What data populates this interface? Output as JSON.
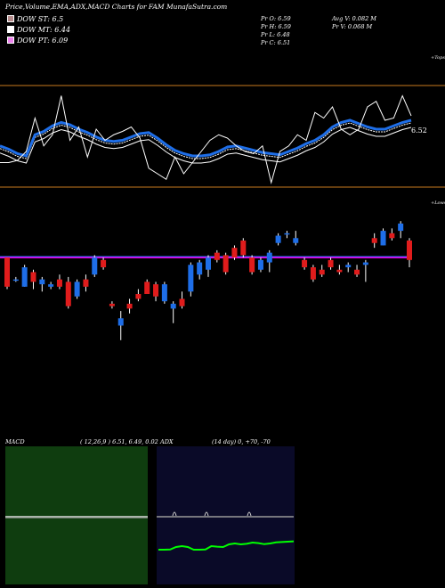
{
  "header": {
    "title": "Price,Volume,EMA,ADX,MACD Charts for FAM MunafaSutra.com",
    "dow_st": "DOW ST: 6.5",
    "dow_mt": "DOW MT: 6.44",
    "dow_pt": "DOW PT: 6.09",
    "pr_o": "Pr O: 6.59",
    "pr_h": "Pr H: 6.59",
    "pr_l": "Pr L: 6.48",
    "pr_c": "Pr C: 6.51",
    "avg_v": "Avg V: 0.082 M",
    "pr_v": "Pr V: 0.068 M"
  },
  "colors": {
    "st": "#b48a8a",
    "mt": "#ffffff",
    "pt": "#ee82ee",
    "bull": "#1e6ee8",
    "bear": "#e01c1c",
    "ema": "#ff00ff",
    "accent": "#c87a1e",
    "macd_bg": "#0f3d0f",
    "adx_bg": "#0a0a28",
    "adx_line": "#00ff00"
  },
  "chart_data": [
    {
      "type": "line",
      "label_right": "6.52",
      "label_top": "+Tops",
      "label_bottom": "+Lows",
      "series": [
        {
          "values": [
            0.45,
            0.42,
            0.38,
            0.36,
            0.55,
            0.58,
            0.63,
            0.66,
            0.64,
            0.6,
            0.57,
            0.53,
            0.5,
            0.49,
            0.5,
            0.53,
            0.56,
            0.57,
            0.52,
            0.46,
            0.41,
            0.38,
            0.36,
            0.36,
            0.37,
            0.4,
            0.44,
            0.45,
            0.43,
            0.41,
            0.39,
            0.38,
            0.37,
            0.4,
            0.43,
            0.47,
            0.5,
            0.55,
            0.62,
            0.66,
            0.68,
            0.65,
            0.62,
            0.6,
            0.6,
            0.63,
            0.66,
            0.68
          ]
        },
        {
          "values": [
            0.3,
            0.3,
            0.32,
            0.4,
            0.7,
            0.45,
            0.55,
            0.9,
            0.5,
            0.62,
            0.35,
            0.6,
            0.5,
            0.55,
            0.58,
            0.62,
            0.52,
            0.25,
            0.2,
            0.15,
            0.35,
            0.2,
            0.3,
            0.4,
            0.5,
            0.55,
            0.52,
            0.45,
            0.4,
            0.38,
            0.45,
            0.12,
            0.4,
            0.45,
            0.55,
            0.5,
            0.75,
            0.7,
            0.8,
            0.6,
            0.55,
            0.6,
            0.8,
            0.85,
            0.68,
            0.7,
            0.9,
            0.72
          ]
        }
      ]
    },
    {
      "type": "candlestick",
      "candles": [
        [
          6.52,
          6.52,
          6.39,
          6.4
        ],
        [
          6.43,
          6.44,
          6.42,
          6.43
        ],
        [
          6.4,
          6.49,
          6.4,
          6.48
        ],
        [
          6.46,
          6.47,
          6.39,
          6.42
        ],
        [
          6.41,
          6.44,
          6.38,
          6.43
        ],
        [
          6.4,
          6.42,
          6.39,
          6.41
        ],
        [
          6.43,
          6.45,
          6.39,
          6.4
        ],
        [
          6.42,
          6.44,
          6.31,
          6.32
        ],
        [
          6.36,
          6.43,
          6.35,
          6.42
        ],
        [
          6.43,
          6.45,
          6.38,
          6.4
        ],
        [
          6.45,
          6.53,
          6.44,
          6.52
        ],
        [
          6.51,
          6.52,
          6.47,
          6.48
        ],
        [
          6.33,
          6.34,
          6.31,
          6.32
        ],
        [
          6.24,
          6.3,
          6.18,
          6.27
        ],
        [
          6.33,
          6.35,
          6.29,
          6.31
        ],
        [
          6.37,
          6.39,
          6.34,
          6.35
        ],
        [
          6.42,
          6.43,
          6.37,
          6.37
        ],
        [
          6.41,
          6.42,
          6.34,
          6.36
        ],
        [
          6.34,
          6.42,
          6.33,
          6.41
        ],
        [
          6.31,
          6.34,
          6.25,
          6.33
        ],
        [
          6.35,
          6.38,
          6.31,
          6.32
        ],
        [
          6.38,
          6.5,
          6.36,
          6.49
        ],
        [
          6.45,
          6.51,
          6.43,
          6.5
        ],
        [
          6.47,
          6.53,
          6.44,
          6.52
        ],
        [
          6.54,
          6.55,
          6.5,
          6.51
        ],
        [
          6.53,
          6.54,
          6.45,
          6.46
        ],
        [
          6.56,
          6.57,
          6.51,
          6.52
        ],
        [
          6.59,
          6.6,
          6.52,
          6.53
        ],
        [
          6.52,
          6.53,
          6.45,
          6.46
        ],
        [
          6.47,
          6.52,
          6.46,
          6.51
        ],
        [
          6.5,
          6.55,
          6.46,
          6.54
        ],
        [
          6.58,
          6.62,
          6.57,
          6.61
        ],
        [
          6.62,
          6.63,
          6.6,
          6.62
        ],
        [
          6.58,
          6.63,
          6.57,
          6.6
        ],
        [
          6.51,
          6.52,
          6.47,
          6.48
        ],
        [
          6.48,
          6.49,
          6.42,
          6.43
        ],
        [
          6.47,
          6.49,
          6.44,
          6.45
        ],
        [
          6.51,
          6.52,
          6.47,
          6.48
        ],
        [
          6.47,
          6.49,
          6.45,
          6.46
        ],
        [
          6.48,
          6.5,
          6.46,
          6.49
        ],
        [
          6.47,
          6.49,
          6.44,
          6.45
        ],
        [
          6.49,
          6.51,
          6.42,
          6.5
        ],
        [
          6.6,
          6.62,
          6.56,
          6.58
        ],
        [
          6.57,
          6.64,
          6.57,
          6.63
        ],
        [
          6.62,
          6.64,
          6.59,
          6.6
        ],
        [
          6.63,
          6.67,
          6.6,
          6.66
        ],
        [
          6.59,
          6.6,
          6.48,
          6.51
        ]
      ]
    },
    {
      "type": "line",
      "title": "MACD",
      "params": "( 12,26,9 ) 6.51, 6.49, 0.02"
    },
    {
      "type": "line",
      "title": "ADX",
      "params": "(14 day) 0, +70, -70",
      "series": [
        {
          "values": [
            0.05,
            0.05,
            0.06,
            0.2,
            0.25,
            0.2,
            0.05,
            0.05,
            0.06,
            0.25,
            0.22,
            0.2,
            0.35,
            0.4,
            0.35,
            0.38,
            0.45,
            0.42,
            0.36,
            0.4,
            0.46,
            0.48,
            0.5,
            0.52
          ]
        }
      ]
    }
  ]
}
